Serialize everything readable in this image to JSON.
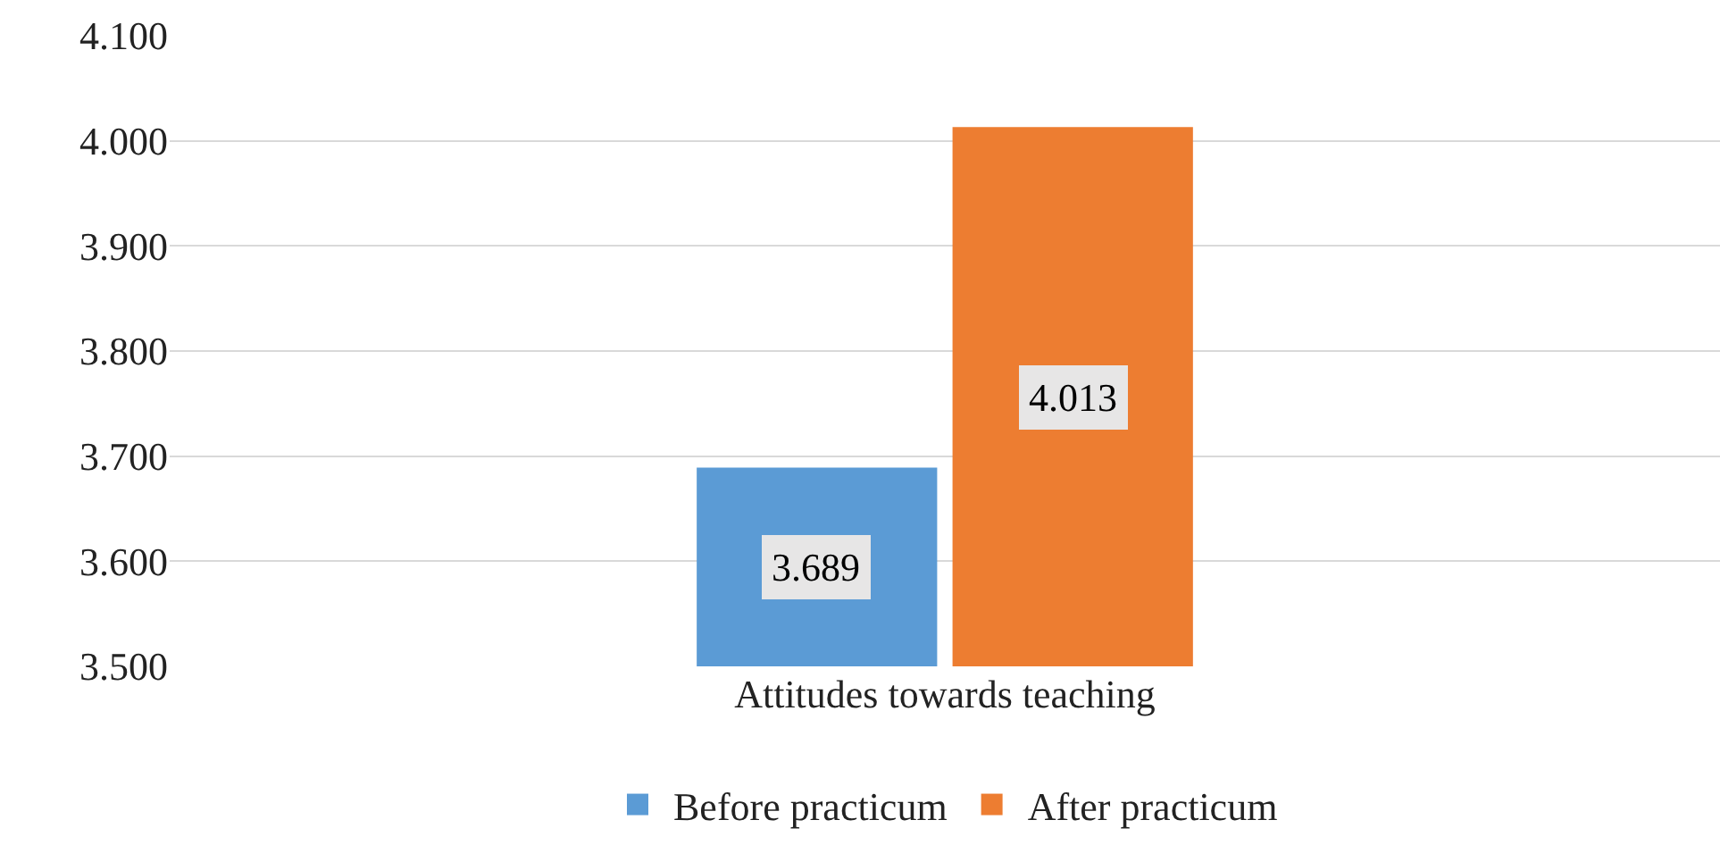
{
  "chart_data": {
    "type": "bar",
    "categories": [
      "Attitudes towards teaching"
    ],
    "series": [
      {
        "name": "Before practicum",
        "color": "#5b9bd5",
        "values": [
          3.689
        ]
      },
      {
        "name": "After practicum",
        "color": "#ed7d31",
        "values": [
          4.013
        ]
      }
    ],
    "ylim": [
      3.5,
      4.1
    ],
    "yticks": [
      {
        "value": 3.5,
        "label": "3.500"
      },
      {
        "value": 3.6,
        "label": "3.600"
      },
      {
        "value": 3.7,
        "label": "3.700"
      },
      {
        "value": 3.8,
        "label": "3.800"
      },
      {
        "value": 3.9,
        "label": "3.900"
      },
      {
        "value": 4.0,
        "label": "4.000"
      },
      {
        "value": 4.1,
        "label": "4.100"
      }
    ],
    "grid": "y",
    "legend": "bottom",
    "data_labels": true
  }
}
